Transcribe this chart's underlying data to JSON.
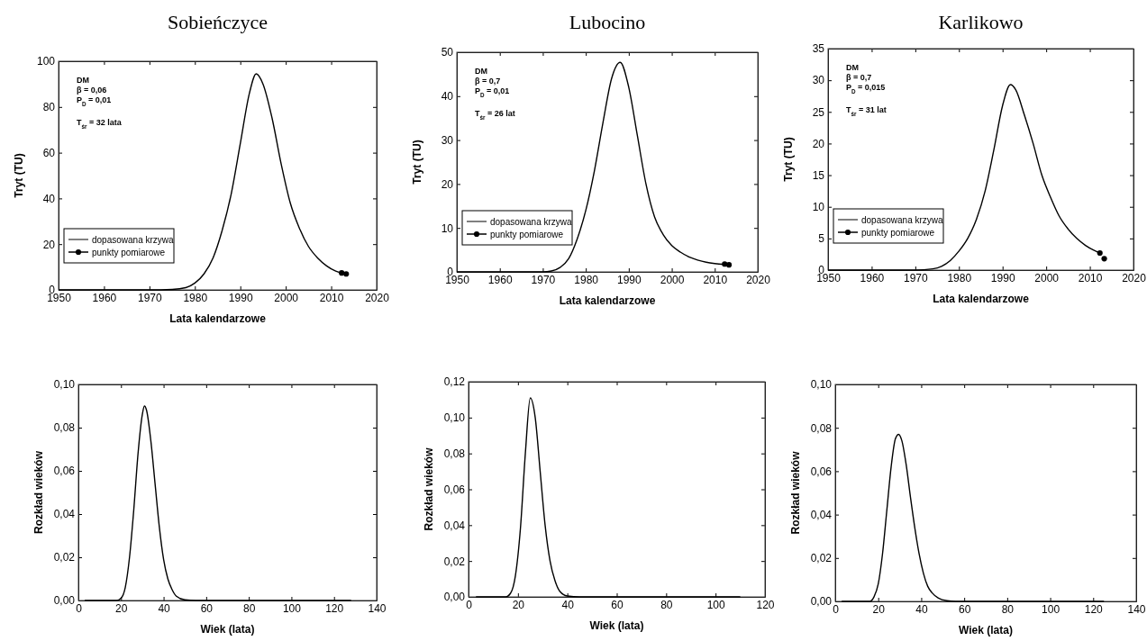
{
  "chart_data": [
    {
      "type": "line",
      "title": "Sobieńczyce",
      "xlabel": "Lata kalendarzowe",
      "ylabel": "Tryt (TU)",
      "xlim": [
        1950,
        2020
      ],
      "xticks": [
        1950,
        1960,
        1970,
        1980,
        1990,
        2000,
        2010,
        2020
      ],
      "ylim": [
        0,
        100
      ],
      "yticks": [
        0,
        20,
        40,
        60,
        80,
        100
      ],
      "legend": "bottom left",
      "annotations": [
        "DM",
        "β = 0,06",
        "P$_{D}$ = 0,01",
        "T$_{śr}$ = 32 lata"
      ],
      "series": [
        {
          "name": "dopasowana krzywa",
          "color": "#000000",
          "x": [
            1950,
            1970,
            1975,
            1978,
            1980,
            1982,
            1984,
            1986,
            1988,
            1990,
            1992,
            1993.5,
            1995,
            1997,
            1999,
            2001,
            2003,
            2005,
            2007,
            2009,
            2011,
            2012.3
          ],
          "values": [
            0,
            0,
            0.2,
            1,
            3,
            7,
            14,
            26,
            42,
            64,
            86,
            94.5,
            90,
            75,
            55,
            38,
            27,
            19,
            14,
            10.5,
            8.2,
            7.3
          ]
        },
        {
          "name": "punkty pomiarowe",
          "type": "scatter",
          "marker": "circle",
          "color": "#000000",
          "x": [
            2012.3,
            2013.3
          ],
          "values": [
            7.4,
            7.0
          ]
        }
      ]
    },
    {
      "type": "line",
      "title": "Lubocino",
      "xlabel": "Lata kalendarzowe",
      "ylabel": "Tryt (TU)",
      "xlim": [
        1950,
        2020
      ],
      "xticks": [
        1950,
        1960,
        1970,
        1980,
        1990,
        2000,
        2010,
        2020
      ],
      "ylim": [
        0,
        50
      ],
      "yticks": [
        0,
        10,
        20,
        30,
        40,
        50
      ],
      "legend": "bottom left",
      "annotations": [
        "DM",
        "β = 0,7",
        "P$_{D}$ = 0,01",
        "T$_{śr}$ = 26 lat"
      ],
      "series": [
        {
          "name": "dopasowana krzywa",
          "color": "#000000",
          "x": [
            1950,
            1970,
            1972,
            1974,
            1976,
            1978,
            1980,
            1982,
            1984,
            1986,
            1988,
            1990,
            1992,
            1994,
            1996,
            1998,
            2000,
            2002,
            2004,
            2006,
            2008,
            2010,
            2012.3
          ],
          "values": [
            0,
            0,
            0.2,
            1,
            3,
            7.5,
            14,
            23,
            34,
            44,
            47.7,
            42,
            31,
            20,
            12.5,
            8.5,
            6,
            4.5,
            3.4,
            2.7,
            2.2,
            1.9,
            1.7
          ]
        },
        {
          "name": "punkty pomiarowe",
          "type": "scatter",
          "marker": "circle",
          "color": "#000000",
          "x": [
            2012.3,
            2013.3
          ],
          "values": [
            1.8,
            1.6
          ]
        }
      ]
    },
    {
      "type": "line",
      "title": "Karlikowo",
      "xlabel": "Lata kalendarzowe",
      "ylabel": "Tryt (TU)",
      "xlim": [
        1950,
        2020
      ],
      "xticks": [
        1950,
        1960,
        1970,
        1980,
        1990,
        2000,
        2010,
        2020
      ],
      "ylim": [
        0,
        35
      ],
      "yticks": [
        0,
        5,
        10,
        15,
        20,
        25,
        30,
        35
      ],
      "legend": "bottom left",
      "annotations": [
        "DM",
        "β = 0,7",
        "P$_{D}$ = 0,015",
        "T$_{śr}$ = 31 lat"
      ],
      "series": [
        {
          "name": "dopasowana krzywa",
          "color": "#000000",
          "x": [
            1950,
            1970,
            1974,
            1976,
            1978,
            1980,
            1982,
            1984,
            1986,
            1988,
            1990,
            1991.8,
            1993,
            1995,
            1997,
            1999,
            2001,
            2003,
            2005,
            2007,
            2009,
            2011,
            2012.3
          ],
          "values": [
            0,
            0,
            0.2,
            0.6,
            1.5,
            3,
            5,
            8,
            12.5,
            19,
            26,
            29.3,
            28.5,
            24.5,
            20,
            15,
            11.5,
            8.5,
            6.5,
            5,
            3.9,
            3.1,
            2.7
          ]
        },
        {
          "name": "punkty pomiarowe",
          "type": "scatter",
          "marker": "circle",
          "color": "#000000",
          "x": [
            2012.3,
            2013.3
          ],
          "values": [
            2.7,
            1.8
          ]
        }
      ]
    },
    {
      "type": "line",
      "xlabel": "Wiek (lata)",
      "ylabel": "Rozkład wieków",
      "xlim": [
        0,
        140
      ],
      "xticks": [
        0,
        20,
        40,
        60,
        80,
        100,
        120,
        140
      ],
      "ylim": [
        0,
        0.1
      ],
      "yticks": [
        {
          "value": 0,
          "label": "0,00"
        },
        {
          "value": 0.02,
          "label": "0,02"
        },
        {
          "value": 0.04,
          "label": "0,04"
        },
        {
          "value": 0.06,
          "label": "0,06"
        },
        {
          "value": 0.08,
          "label": "0,08"
        },
        {
          "value": 0.1,
          "label": "0,10"
        }
      ],
      "series": [
        {
          "color": "#000000",
          "x": [
            3,
            18,
            20,
            22,
            24,
            26,
            28,
            30,
            31,
            32,
            34,
            36,
            38,
            40,
            42,
            44,
            46,
            50,
            55,
            128
          ],
          "values": [
            0,
            0,
            0.001,
            0.006,
            0.02,
            0.042,
            0.068,
            0.086,
            0.09,
            0.088,
            0.074,
            0.054,
            0.034,
            0.019,
            0.01,
            0.005,
            0.002,
            0.0003,
            0,
            0
          ]
        }
      ]
    },
    {
      "type": "line",
      "xlabel": "Wiek (lata)",
      "ylabel": "Rozkład wieków",
      "xlim": [
        0,
        120
      ],
      "xticks": [
        0,
        20,
        40,
        60,
        80,
        100,
        120
      ],
      "ylim": [
        0,
        0.12
      ],
      "yticks": [
        {
          "value": 0,
          "label": "0,00"
        },
        {
          "value": 0.02,
          "label": "0,02"
        },
        {
          "value": 0.04,
          "label": "0,04"
        },
        {
          "value": 0.06,
          "label": "0,06"
        },
        {
          "value": 0.08,
          "label": "0,08"
        },
        {
          "value": 0.1,
          "label": "0,10"
        },
        {
          "value": 0.12,
          "label": "0,12"
        }
      ],
      "series": [
        {
          "color": "#000000",
          "x": [
            3,
            15,
            17,
            19,
            21,
            23,
            25,
            27,
            29,
            31,
            33,
            35,
            37,
            40,
            45,
            110
          ],
          "values": [
            0,
            0,
            0.002,
            0.012,
            0.038,
            0.08,
            0.111,
            0.1,
            0.07,
            0.04,
            0.02,
            0.009,
            0.003,
            0.0005,
            0,
            0
          ]
        }
      ]
    },
    {
      "type": "line",
      "xlabel": "Wiek (lata)",
      "ylabel": "Rozkład wieków",
      "xlim": [
        0,
        140
      ],
      "xticks": [
        0,
        20,
        40,
        60,
        80,
        100,
        120,
        140
      ],
      "ylim": [
        0,
        0.1
      ],
      "yticks": [
        {
          "value": 0,
          "label": "0,00"
        },
        {
          "value": 0.02,
          "label": "0,02"
        },
        {
          "value": 0.04,
          "label": "0,04"
        },
        {
          "value": 0.06,
          "label": "0,06"
        },
        {
          "value": 0.08,
          "label": "0,08"
        },
        {
          "value": 0.1,
          "label": "0,10"
        }
      ],
      "series": [
        {
          "color": "#000000",
          "x": [
            3,
            16,
            18,
            20,
            22,
            24,
            26,
            28,
            29.5,
            31,
            33,
            35,
            37,
            39,
            41,
            43,
            45,
            48,
            52,
            56,
            125
          ],
          "values": [
            0,
            0,
            0.002,
            0.008,
            0.022,
            0.042,
            0.062,
            0.075,
            0.077,
            0.074,
            0.063,
            0.048,
            0.034,
            0.022,
            0.013,
            0.007,
            0.004,
            0.0015,
            0.0003,
            0,
            0
          ]
        }
      ]
    }
  ]
}
